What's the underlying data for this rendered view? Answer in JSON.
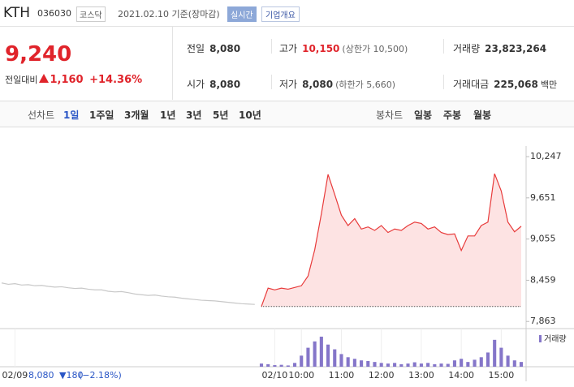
{
  "header": {
    "name": "KTH",
    "code": "036030",
    "market": "코스닥",
    "date": "2021.02.10 기준(장마감)",
    "realtime": "실시간",
    "overview": "기업개요"
  },
  "quote": {
    "price": "9,240",
    "change_label": "전일대비",
    "change": "1,160",
    "rate": "+14.36%"
  },
  "stats": [
    {
      "label": "전일",
      "value": "8,080"
    },
    {
      "label": "고가",
      "value": "10,150",
      "note": "(상한가 10,500)"
    },
    {
      "label": "거래량",
      "value": "23,823,264"
    },
    {
      "label": "시가",
      "value": "8,080"
    },
    {
      "label": "저가",
      "value": "8,080",
      "note": "(하한가 5,660)"
    },
    {
      "label": "거래대금",
      "value": "225,068",
      "unit": "백만"
    }
  ],
  "tabs": {
    "line_label": "선차트",
    "line": [
      "1일",
      "1주일",
      "3개월",
      "1년",
      "3년",
      "5년",
      "10년"
    ],
    "candle_label": "봉차트",
    "candle": [
      "일봉",
      "주봉",
      "월봉"
    ]
  },
  "footer": {
    "price": "8,080",
    "change": "▼180",
    "rate": "(−2.18%)"
  },
  "chart_data": {
    "type": "line",
    "categories": [
      null,
      null,
      "02/09",
      null,
      null,
      null,
      null,
      null,
      null,
      null,
      null,
      null,
      null,
      null,
      null,
      null,
      null,
      null,
      null,
      null,
      null,
      null,
      null,
      null,
      null,
      null,
      null,
      null,
      null,
      null,
      null,
      null,
      null,
      null,
      null,
      null,
      null,
      null,
      null,
      null,
      null,
      "02/10",
      null,
      null,
      null,
      "10:00",
      null,
      null,
      null,
      null,
      null,
      "11:00",
      null,
      null,
      null,
      null,
      null,
      "12:00",
      null,
      null,
      null,
      null,
      null,
      "13:00",
      null,
      null,
      null,
      null,
      null,
      "14:00",
      null,
      null,
      null,
      null,
      null,
      "15:00",
      null,
      null,
      null
    ],
    "series": [
      {
        "color": "#c8c8c8",
        "values": [
          8420,
          8400,
          8410,
          8390,
          8395,
          8380,
          8385,
          8370,
          8360,
          8365,
          8350,
          8340,
          8345,
          8330,
          8320,
          8320,
          8300,
          8290,
          8295,
          8280,
          8260,
          8250,
          8240,
          8245,
          8230,
          8220,
          8215,
          8200,
          8190,
          8180,
          8170,
          8165,
          8160,
          8150,
          8140,
          8130,
          8120,
          8115,
          8110,
          null,
          null,
          null,
          null,
          null,
          null,
          null,
          null,
          null,
          null,
          null,
          null,
          null,
          null,
          null,
          null,
          null,
          null,
          null,
          null,
          null,
          null,
          null,
          null,
          null,
          null,
          null,
          null,
          null,
          null,
          null,
          null,
          null,
          null,
          null,
          null,
          null,
          null,
          null,
          null
        ]
      },
      {
        "color": "#e83b3b",
        "fill": "#fde3e3",
        "values": [
          null,
          null,
          null,
          null,
          null,
          null,
          null,
          null,
          null,
          null,
          null,
          null,
          null,
          null,
          null,
          null,
          null,
          null,
          null,
          null,
          null,
          null,
          null,
          null,
          null,
          null,
          null,
          null,
          null,
          null,
          null,
          null,
          null,
          null,
          null,
          null,
          null,
          null,
          null,
          8080,
          8345,
          8320,
          8345,
          8330,
          8355,
          8380,
          8520,
          8900,
          9420,
          9990,
          9700,
          9400,
          9250,
          9350,
          9200,
          9230,
          9180,
          9250,
          9150,
          9200,
          9180,
          9250,
          9300,
          9280,
          9200,
          9230,
          9150,
          9120,
          9130,
          8890,
          9100,
          9100,
          9250,
          9300,
          10000,
          9750,
          9300,
          9160,
          9240
        ]
      }
    ],
    "reference_line": 8080,
    "ylim": [
      7760,
      10400
    ],
    "yticks": [
      {
        "value": 10247,
        "label": "10,247"
      },
      {
        "value": 9651,
        "label": "9,651"
      },
      {
        "value": 9055,
        "label": "9,055"
      },
      {
        "value": 8459,
        "label": "8,459"
      },
      {
        "value": 7863,
        "label": "7,863"
      }
    ],
    "volume": {
      "name": "거래량",
      "color": "#8576c9",
      "ylim": [
        0,
        100
      ],
      "values": [
        null,
        null,
        null,
        null,
        null,
        null,
        null,
        null,
        null,
        null,
        null,
        null,
        null,
        null,
        null,
        null,
        null,
        null,
        null,
        null,
        null,
        null,
        null,
        null,
        null,
        null,
        null,
        null,
        null,
        null,
        null,
        null,
        null,
        null,
        null,
        null,
        null,
        null,
        null,
        10,
        8,
        5,
        6,
        4,
        12,
        35,
        60,
        80,
        95,
        70,
        55,
        40,
        30,
        25,
        20,
        18,
        15,
        12,
        10,
        12,
        8,
        10,
        14,
        10,
        12,
        8,
        10,
        9,
        20,
        25,
        15,
        22,
        30,
        45,
        85,
        60,
        35,
        20,
        15
      ]
    }
  }
}
